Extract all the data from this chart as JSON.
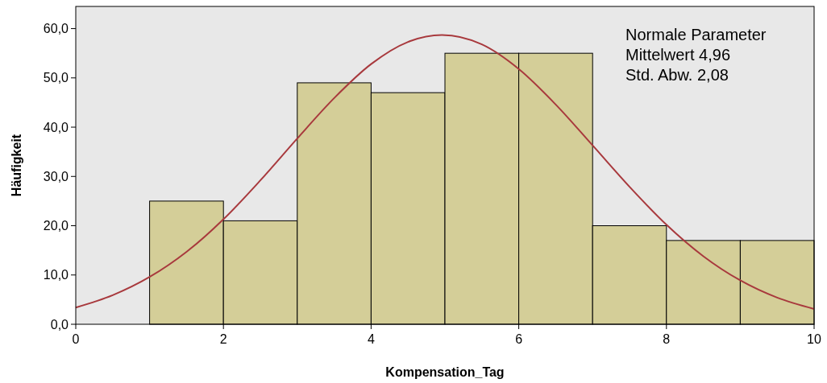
{
  "chart_data": {
    "type": "histogram",
    "xlabel": "Kompensation_Tag",
    "ylabel": "Häufigkeit",
    "bins": [
      1,
      2,
      3,
      4,
      5,
      6,
      7,
      8,
      9,
      10
    ],
    "values": [
      25,
      21,
      49,
      47,
      55,
      55,
      20,
      17,
      17
    ],
    "color": "#d4ce98",
    "series": [
      {
        "type": "line",
        "color": "#a8393d",
        "x": [
          0,
          0.5,
          1,
          1.5,
          2,
          2.5,
          3,
          3.5,
          4,
          4.5,
          4.96,
          5.5,
          6,
          6.5,
          7,
          7.5,
          8,
          8.5,
          9,
          9.5,
          10
        ],
        "values": [
          3.4,
          5.9,
          9.6,
          14.7,
          21.3,
          29.2,
          37.7,
          45.9,
          52.8,
          57.3,
          58.7,
          56.8,
          51.8,
          44.6,
          36.3,
          27.9,
          20.2,
          13.8,
          8.9,
          5.4,
          3.1
        ]
      }
    ],
    "annotations": [
      "Normale Parameter",
      "Mittelwert 4,96",
      "Std. Abw. 2,08"
    ],
    "xlim": [
      0,
      10
    ],
    "xticks": [
      0,
      2,
      4,
      6,
      8,
      10
    ],
    "ylim": [
      0,
      64.5
    ],
    "yticks": [
      {
        "value": 0,
        "label": "0,0"
      },
      {
        "value": 10,
        "label": "10,0"
      },
      {
        "value": 20,
        "label": "20,0"
      },
      {
        "value": 30,
        "label": "30,0"
      },
      {
        "value": 40,
        "label": "40,0"
      },
      {
        "value": 50,
        "label": "50,0"
      },
      {
        "value": 60,
        "label": "60,0"
      }
    ],
    "grid": false
  }
}
